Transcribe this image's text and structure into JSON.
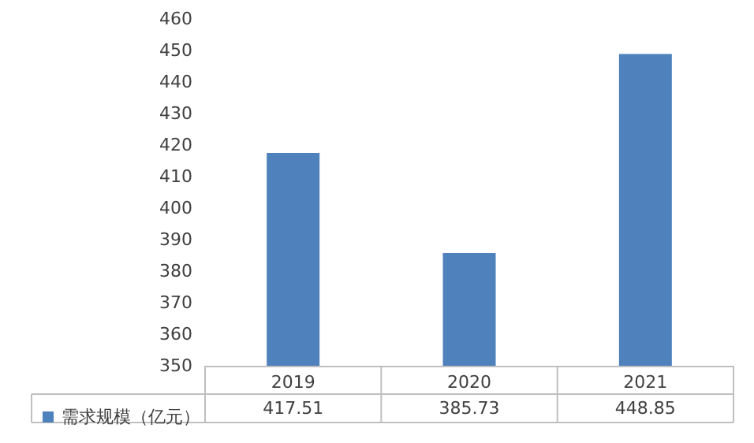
{
  "chart_data": {
    "type": "bar",
    "categories": [
      "2019",
      "2020",
      "2021"
    ],
    "series": [
      {
        "name": "需求规模（亿元）",
        "color": "#4f81bd",
        "values": [
          417.51,
          385.73,
          448.85
        ]
      }
    ],
    "ylim": [
      350,
      460
    ],
    "yticks": [
      350,
      360,
      370,
      380,
      390,
      400,
      410,
      420,
      430,
      440,
      450,
      460
    ],
    "grid": false,
    "legend": "bottom left",
    "data_labels": true
  }
}
